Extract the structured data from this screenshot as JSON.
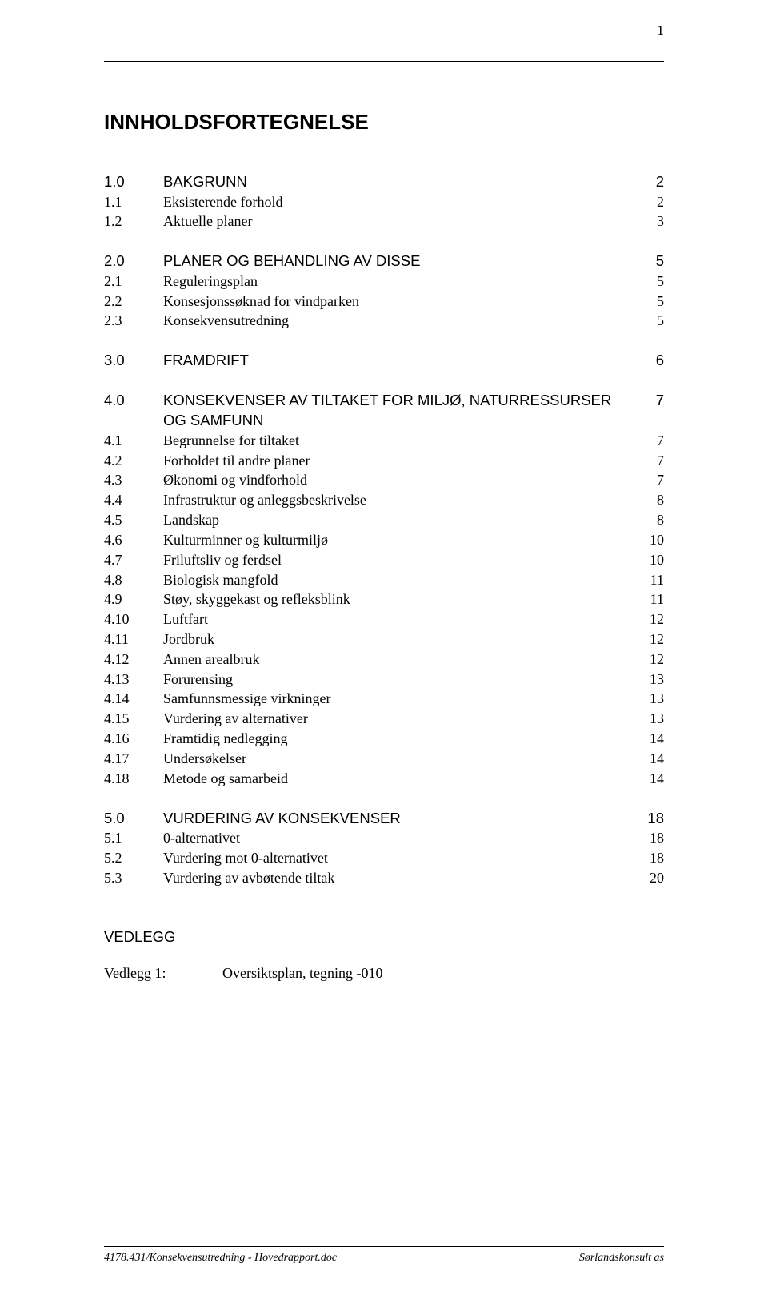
{
  "page_number": "1",
  "title": "INNHOLDSFORTEGNELSE",
  "toc": [
    {
      "head": {
        "num": "1.0",
        "label": "BAKGRUNN",
        "page": "2"
      },
      "items": [
        {
          "num": "1.1",
          "label": "Eksisterende forhold",
          "page": "2"
        },
        {
          "num": "1.2",
          "label": "Aktuelle planer",
          "page": "3"
        }
      ]
    },
    {
      "head": {
        "num": "2.0",
        "label": "PLANER OG BEHANDLING AV DISSE",
        "page": "5"
      },
      "items": [
        {
          "num": "2.1",
          "label": "Reguleringsplan",
          "page": "5"
        },
        {
          "num": "2.2",
          "label": "Konsesjonssøknad for vindparken",
          "page": "5"
        },
        {
          "num": "2.3",
          "label": "Konsekvensutredning",
          "page": "5"
        }
      ]
    },
    {
      "head": {
        "num": "3.0",
        "label": "FRAMDRIFT",
        "page": "6"
      },
      "items": []
    },
    {
      "head": {
        "num": "4.0",
        "label": "KONSEKVENSER AV TILTAKET FOR MILJØ, NATURRESSURSER OG SAMFUNN",
        "page": "7"
      },
      "items": [
        {
          "num": "4.1",
          "label": "Begrunnelse for tiltaket",
          "page": "7"
        },
        {
          "num": "4.2",
          "label": "Forholdet til andre planer",
          "page": "7"
        },
        {
          "num": "4.3",
          "label": "Økonomi og vindforhold",
          "page": "7"
        },
        {
          "num": "4.4",
          "label": "Infrastruktur og anleggsbeskrivelse",
          "page": "8"
        },
        {
          "num": "4.5",
          "label": "Landskap",
          "page": "8"
        },
        {
          "num": "4.6",
          "label": "Kulturminner og kulturmiljø",
          "page": "10"
        },
        {
          "num": "4.7",
          "label": "Friluftsliv og ferdsel",
          "page": "10"
        },
        {
          "num": "4.8",
          "label": "Biologisk mangfold",
          "page": "11"
        },
        {
          "num": "4.9",
          "label": "Støy, skyggekast og refleksblink",
          "page": "11"
        },
        {
          "num": "4.10",
          "label": "Luftfart",
          "page": "12"
        },
        {
          "num": "4.11",
          "label": "Jordbruk",
          "page": "12"
        },
        {
          "num": "4.12",
          "label": "Annen arealbruk",
          "page": "12"
        },
        {
          "num": "4.13",
          "label": "Forurensing",
          "page": "13"
        },
        {
          "num": "4.14",
          "label": "Samfunnsmessige virkninger",
          "page": "13"
        },
        {
          "num": "4.15",
          "label": "Vurdering av alternativer",
          "page": "13"
        },
        {
          "num": "4.16",
          "label": "Framtidig nedlegging",
          "page": "14"
        },
        {
          "num": "4.17",
          "label": "Undersøkelser",
          "page": "14"
        },
        {
          "num": "4.18",
          "label": "Metode og samarbeid",
          "page": "14"
        }
      ]
    },
    {
      "head": {
        "num": "5.0",
        "label": "VURDERING AV KONSEKVENSER",
        "page": "18"
      },
      "items": [
        {
          "num": "5.1",
          "label": "0-alternativet",
          "page": "18"
        },
        {
          "num": "5.2",
          "label": "Vurdering mot 0-alternativet",
          "page": "18"
        },
        {
          "num": "5.3",
          "label": "Vurdering av avbøtende tiltak",
          "page": "20"
        }
      ]
    }
  ],
  "appendix": {
    "heading": "VEDLEGG",
    "items": [
      {
        "label": "Vedlegg 1:",
        "desc": "Oversiktsplan, tegning -010"
      }
    ]
  },
  "footer": {
    "left": "4178.431/Konsekvensutredning - Hovedrapport.doc",
    "right": "Sørlandskonsult as"
  }
}
